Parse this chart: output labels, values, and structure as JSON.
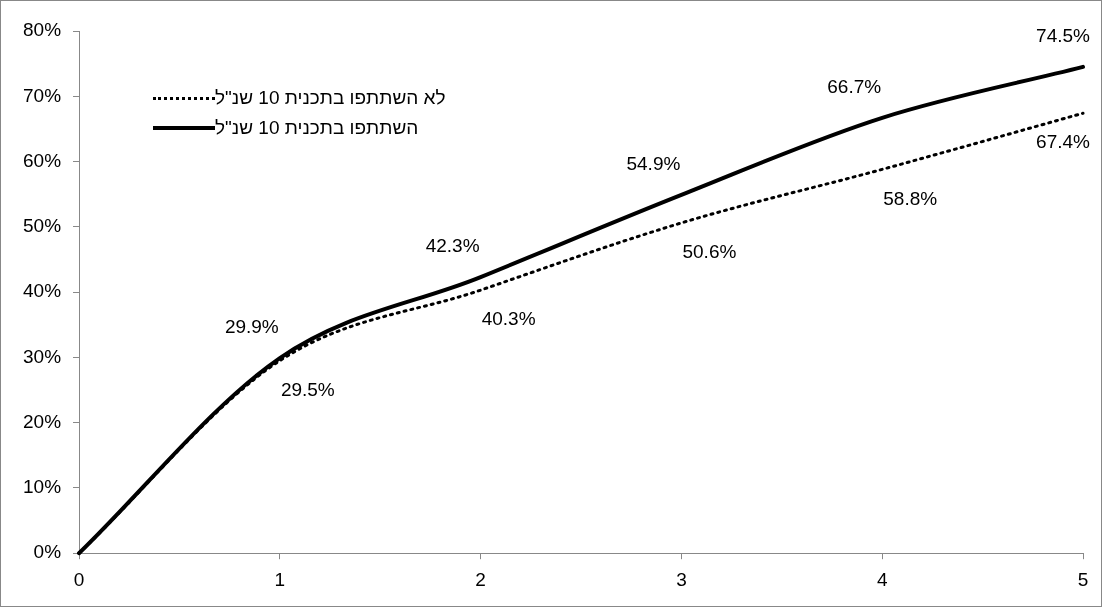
{
  "chart_data": {
    "type": "line",
    "x": [
      0,
      1,
      2,
      3,
      4,
      5
    ],
    "series": [
      {
        "name": "לא השתתפו בתכנית 10 שנ\"ל",
        "color": "#000000",
        "line_style": "dotted",
        "values": [
          0,
          29.5,
          40.3,
          50.6,
          58.8,
          67.4
        ],
        "value_labels": [
          null,
          "29.5%",
          "40.3%",
          "50.6%",
          "58.8%",
          "67.4%"
        ]
      },
      {
        "name": "השתתפו בתכנית 10 שנ\"ל",
        "color": "#000000",
        "line_style": "solid",
        "values": [
          0,
          29.9,
          42.3,
          54.9,
          66.7,
          74.5
        ],
        "value_labels": [
          null,
          "29.9%",
          "42.3%",
          "54.9%",
          "66.7%",
          "74.5%"
        ]
      }
    ],
    "xlim": [
      0,
      5
    ],
    "xticks": [
      0,
      1,
      2,
      3,
      4,
      5
    ],
    "ylim": [
      0,
      80
    ],
    "yticks": [
      {
        "value": 0,
        "label": "0%"
      },
      {
        "value": 10,
        "label": "10%"
      },
      {
        "value": 20,
        "label": "20%"
      },
      {
        "value": 30,
        "label": "30%"
      },
      {
        "value": 40,
        "label": "40%"
      },
      {
        "value": 50,
        "label": "50%"
      },
      {
        "value": 60,
        "label": "60%"
      },
      {
        "value": 70,
        "label": "70%"
      },
      {
        "value": 80,
        "label": "80%"
      }
    ],
    "grid": false,
    "legend": "top left",
    "marker": "none"
  }
}
